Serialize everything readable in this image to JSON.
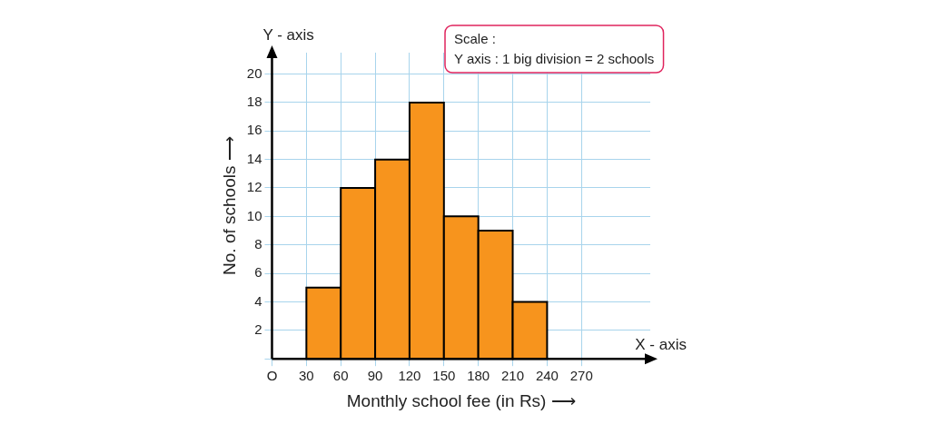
{
  "chart_data": {
    "type": "histogram",
    "xlabel": "Monthly school fee (in Rs) ⟶",
    "ylabel": "No. of schools ⟶",
    "bins": [
      30,
      60,
      90,
      120,
      150,
      180,
      210,
      240
    ],
    "values": [
      5,
      12,
      14,
      18,
      10,
      9,
      4
    ],
    "color": "#f7941d",
    "xlim": [
      0,
      330
    ],
    "ylim": [
      0,
      21.5
    ],
    "xticks": [
      {
        "value": 0,
        "label": "O"
      },
      30,
      60,
      90,
      120,
      150,
      180,
      210,
      240,
      270
    ],
    "yticks": [
      {
        "value": 0,
        "label": null
      },
      2,
      4,
      6,
      8,
      10,
      12,
      14,
      16,
      18,
      20
    ],
    "grid": true,
    "annotations": [
      "Y - axis",
      "X - axis",
      "Scale :\nY axis : 1 big division = 2 schools"
    ]
  }
}
